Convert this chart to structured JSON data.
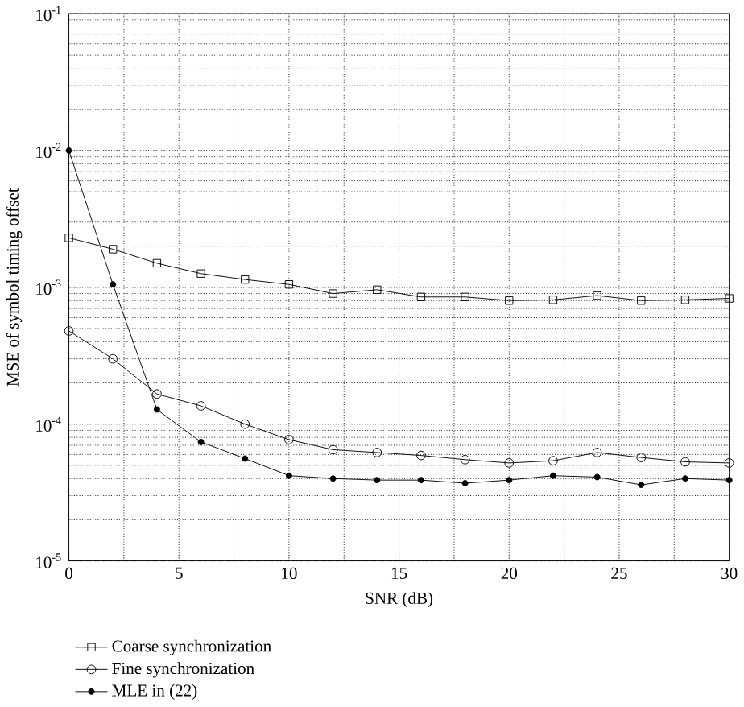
{
  "chart_data": {
    "type": "line",
    "xlabel": "SNR (dB)",
    "ylabel": "MSE of symbol timing offset",
    "x": [
      0,
      2,
      4,
      6,
      8,
      10,
      12,
      14,
      16,
      18,
      20,
      22,
      24,
      26,
      28,
      30
    ],
    "series": [
      {
        "name": "Coarse synchronization",
        "color": "#000000",
        "marker": "square",
        "values": [
          0.0023,
          0.0019,
          0.0015,
          0.00126,
          0.00114,
          0.00105,
          0.0009,
          0.00096,
          0.00085,
          0.00085,
          0.0008,
          0.00081,
          0.00087,
          0.0008,
          0.00081,
          0.00083
        ]
      },
      {
        "name": "Fine synchronization",
        "color": "#000000",
        "marker": "circle",
        "values": [
          0.00048,
          0.0003,
          0.000166,
          0.000136,
          0.0001,
          7.7e-05,
          6.5e-05,
          6.2e-05,
          5.9e-05,
          5.5e-05,
          5.2e-05,
          5.4e-05,
          6.2e-05,
          5.7e-05,
          5.3e-05,
          5.2e-05
        ]
      },
      {
        "name": "MLE in (22)",
        "color": "#000000",
        "marker": "star",
        "values": [
          0.01,
          0.00105,
          0.000128,
          7.4e-05,
          5.6e-05,
          4.2e-05,
          4e-05,
          3.9e-05,
          3.9e-05,
          3.7e-05,
          3.9e-05,
          4.2e-05,
          4.1e-05,
          3.6e-05,
          4e-05,
          3.9e-05
        ]
      }
    ],
    "log": "y",
    "xlim": [
      0,
      30
    ],
    "ylim": [
      1e-05,
      0.1
    ],
    "xticks": [
      0,
      5,
      10,
      15,
      20,
      25,
      30
    ],
    "yticks": [
      {
        "value": 1e-05,
        "label": "10$^{-5}$"
      },
      {
        "value": 0.0001,
        "label": "10$^{-4}$"
      },
      {
        "value": 0.001,
        "label": "10$^{-3}$"
      },
      {
        "value": 0.01,
        "label": "10$^{-2}$"
      },
      {
        "value": 0.1,
        "label": "10$^{-1}$"
      }
    ],
    "grid": true,
    "legend": "bottom left",
    "line_style": "solid"
  }
}
